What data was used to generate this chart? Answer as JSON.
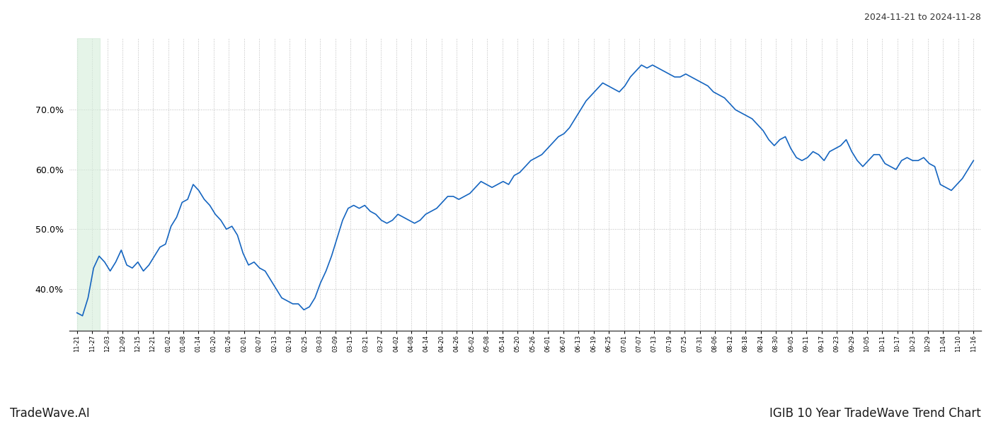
{
  "title_right": "2024-11-21 to 2024-11-28",
  "title_bottom_left": "TradeWave.AI",
  "title_bottom_right": "IGIB 10 Year TradeWave Trend Chart",
  "line_color": "#1565c0",
  "line_width": 1.2,
  "background_color": "#ffffff",
  "grid_color": "#bbbbbb",
  "highlight_color": "#d4edda",
  "highlight_alpha": 0.6,
  "ylim": [
    33,
    82
  ],
  "yticks": [
    40.0,
    50.0,
    60.0,
    70.0
  ],
  "x_labels": [
    "11-21",
    "11-27",
    "12-03",
    "12-09",
    "12-15",
    "12-21",
    "01-02",
    "01-08",
    "01-14",
    "01-20",
    "01-26",
    "02-01",
    "02-07",
    "02-13",
    "02-19",
    "02-25",
    "03-03",
    "03-09",
    "03-15",
    "03-21",
    "03-27",
    "04-02",
    "04-08",
    "04-14",
    "04-20",
    "04-26",
    "05-02",
    "05-08",
    "05-14",
    "05-20",
    "05-26",
    "06-01",
    "06-07",
    "06-13",
    "06-19",
    "06-25",
    "07-01",
    "07-07",
    "07-13",
    "07-19",
    "07-25",
    "07-31",
    "08-06",
    "08-12",
    "08-18",
    "08-24",
    "08-30",
    "09-05",
    "09-11",
    "09-17",
    "09-23",
    "09-29",
    "10-05",
    "10-11",
    "10-17",
    "10-23",
    "10-29",
    "11-04",
    "11-10",
    "11-16"
  ],
  "highlight_xstart": 0,
  "highlight_xend": 1.5,
  "values": [
    36.0,
    35.5,
    38.5,
    43.5,
    45.5,
    44.5,
    43.0,
    44.5,
    46.5,
    44.0,
    43.5,
    44.5,
    43.0,
    44.0,
    45.5,
    47.0,
    47.5,
    50.5,
    52.0,
    54.5,
    55.0,
    57.5,
    56.5,
    55.0,
    54.0,
    52.5,
    51.5,
    50.0,
    50.5,
    49.0,
    46.0,
    44.0,
    44.5,
    43.5,
    43.0,
    41.5,
    40.0,
    38.5,
    38.0,
    37.5,
    37.5,
    36.5,
    37.0,
    38.5,
    41.0,
    43.0,
    45.5,
    48.5,
    51.5,
    53.5,
    54.0,
    53.5,
    54.0,
    53.0,
    52.5,
    51.5,
    51.0,
    51.5,
    52.5,
    52.0,
    51.5,
    51.0,
    51.5,
    52.5,
    53.0,
    53.5,
    54.5,
    55.5,
    55.5,
    55.0,
    55.5,
    56.0,
    57.0,
    58.0,
    57.5,
    57.0,
    57.5,
    58.0,
    57.5,
    59.0,
    59.5,
    60.5,
    61.5,
    62.0,
    62.5,
    63.5,
    64.5,
    65.5,
    66.0,
    67.0,
    68.5,
    70.0,
    71.5,
    72.5,
    73.5,
    74.5,
    74.0,
    73.5,
    73.0,
    74.0,
    75.5,
    76.5,
    77.5,
    77.0,
    77.5,
    77.0,
    76.5,
    76.0,
    75.5,
    75.5,
    76.0,
    75.5,
    75.0,
    74.5,
    74.0,
    73.0,
    72.5,
    72.0,
    71.0,
    70.0,
    69.5,
    69.0,
    68.5,
    67.5,
    66.5,
    65.0,
    64.0,
    65.0,
    65.5,
    63.5,
    62.0,
    61.5,
    62.0,
    63.0,
    62.5,
    61.5,
    63.0,
    63.5,
    64.0,
    65.0,
    63.0,
    61.5,
    60.5,
    61.5,
    62.5,
    62.5,
    61.0,
    60.5,
    60.0,
    61.5,
    62.0,
    61.5,
    61.5,
    62.0,
    61.0,
    60.5,
    57.5,
    57.0,
    56.5,
    57.5,
    58.5,
    60.0,
    61.5
  ]
}
